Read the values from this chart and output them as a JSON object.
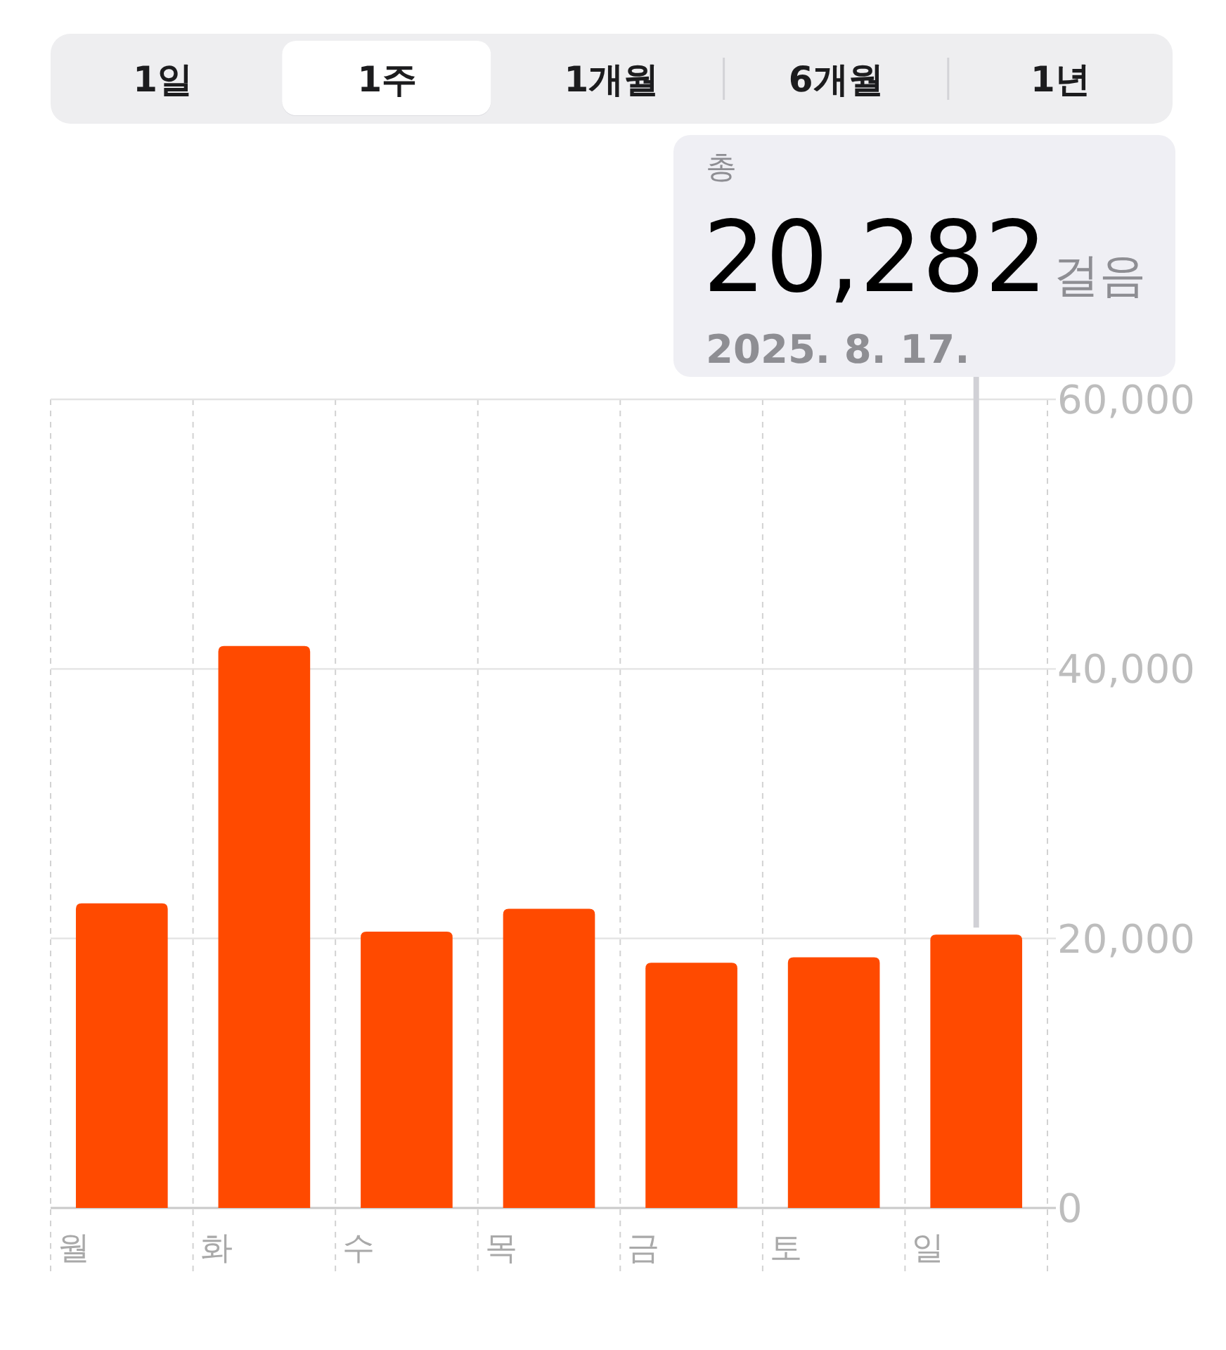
{
  "chart_data": {
    "type": "bar",
    "categories": [
      "월",
      "화",
      "수",
      "목",
      "금",
      "토",
      "일"
    ],
    "values": [
      22600,
      41700,
      20500,
      22200,
      18200,
      18600,
      20282
    ],
    "color": "#ff4a00",
    "ylim": [
      0,
      60000
    ],
    "yticks": [
      0,
      {
        "value": 20000,
        "label": "20,000"
      },
      {
        "value": 40000,
        "label": "40,000"
      },
      {
        "value": 60000,
        "label": "60,000"
      }
    ],
    "grid": true,
    "annotations": [
      "1일",
      "1주",
      "1개월",
      "6개월",
      "1년",
      "총",
      "20,282",
      "걸음",
      "2025. 8. 17."
    ]
  }
}
